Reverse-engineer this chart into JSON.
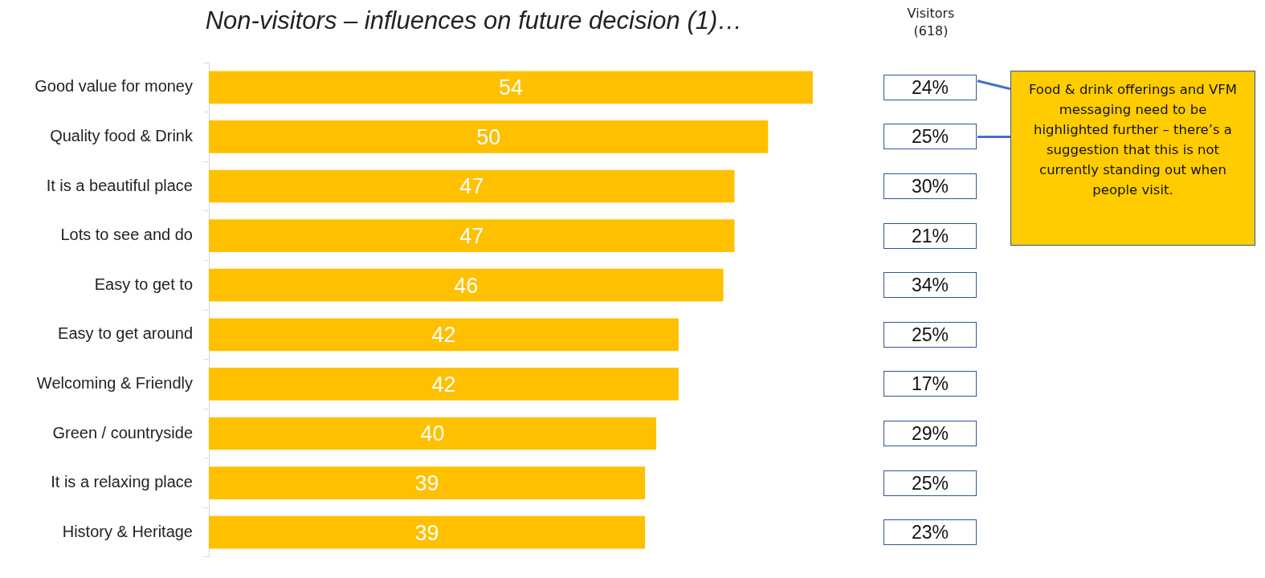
{
  "chart_data": {
    "type": "bar",
    "orientation": "horizontal",
    "title": "Non-visitors – influences on future decision (1)…",
    "categories": [
      "Good value for money",
      "Quality food & Drink",
      "It is a beautiful place",
      "Lots to see and do",
      "Easy to get to",
      "Easy to get around",
      "Welcoming & Friendly",
      "Green / countryside",
      "It is a relaxing place",
      "History & Heritage"
    ],
    "values": [
      54,
      50,
      47,
      47,
      46,
      42,
      42,
      40,
      39,
      39
    ],
    "color": "#ffc000",
    "data_labels": true,
    "annotations": [
      "Visitors\n(618)",
      "24%",
      "25%",
      "30%",
      "21%",
      "34%",
      "25%",
      "17%",
      "29%",
      "25%",
      "23%",
      "Food & drink offerings and VFM messaging need to be highlighted further – there’s a suggestion that this is not currently standing out when people visit."
    ]
  }
}
